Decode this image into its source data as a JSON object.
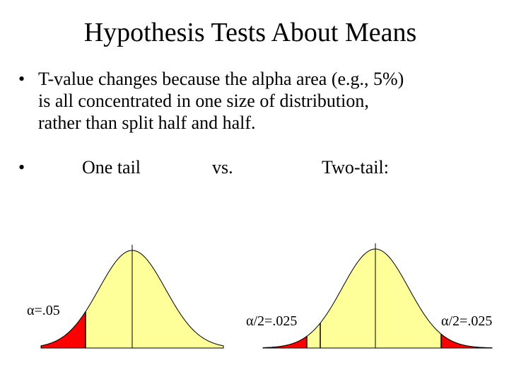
{
  "title": "Hypothesis Tests About Means",
  "bullets": {
    "first": [
      "T-value changes because the alpha area (e.g., 5%)",
      "is all concentrated in one size of distribution,",
      "rather than split half and half."
    ],
    "second": {
      "one_tail": "One tail",
      "vs": "vs.",
      "two_tail": "Two-tail:"
    }
  },
  "curves": {
    "one_tail": {
      "alpha_label": "α=.05"
    },
    "two_tail": {
      "left_label": "α/2=.025",
      "right_label": "α/2=.025"
    }
  },
  "colors": {
    "curve_fill": "#ffff99",
    "rejection_fill": "#ff0000",
    "line": "#000000"
  }
}
